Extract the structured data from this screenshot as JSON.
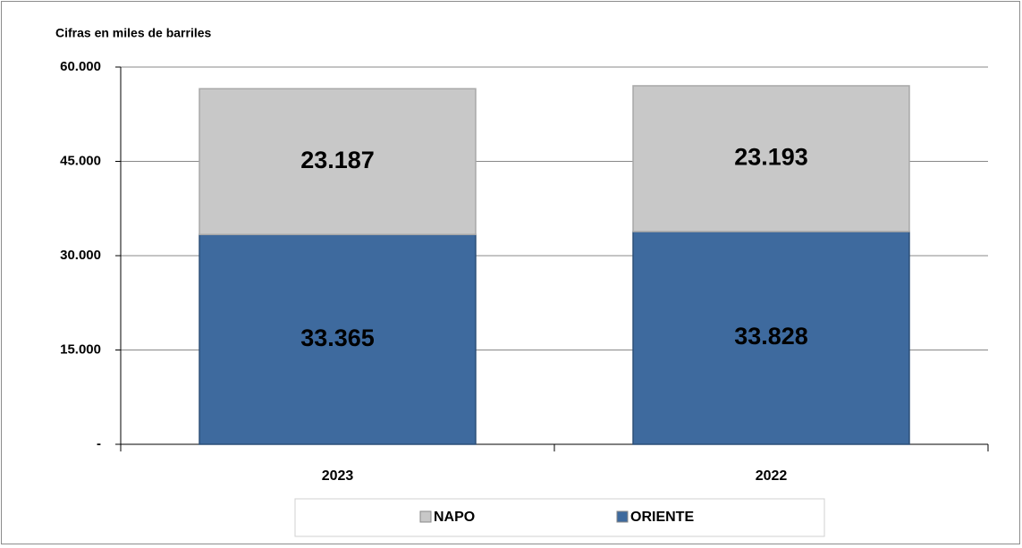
{
  "chart_data": {
    "type": "stacked_bar",
    "subtitle": "Cifras en miles de barriles",
    "categories": [
      "2023",
      "2022"
    ],
    "series": [
      {
        "name": "ORIENTE",
        "color": "#3e6a9e",
        "values": [
          33365,
          33828
        ],
        "value_labels": [
          "33.365",
          "33.828"
        ]
      },
      {
        "name": "NAPO",
        "color": "#c8c8c8",
        "values": [
          23187,
          23193
        ],
        "value_labels": [
          "23.187",
          "23.193"
        ]
      }
    ],
    "ylim": [
      0,
      60000
    ],
    "yticks": [
      {
        "value": 0,
        "label": "-"
      },
      {
        "value": 15000,
        "label": "15.000"
      },
      {
        "value": 30000,
        "label": "30.000"
      },
      {
        "value": 45000,
        "label": "45.000"
      },
      {
        "value": 60000,
        "label": "60.000"
      }
    ],
    "grid": true,
    "legend": "bottom"
  }
}
